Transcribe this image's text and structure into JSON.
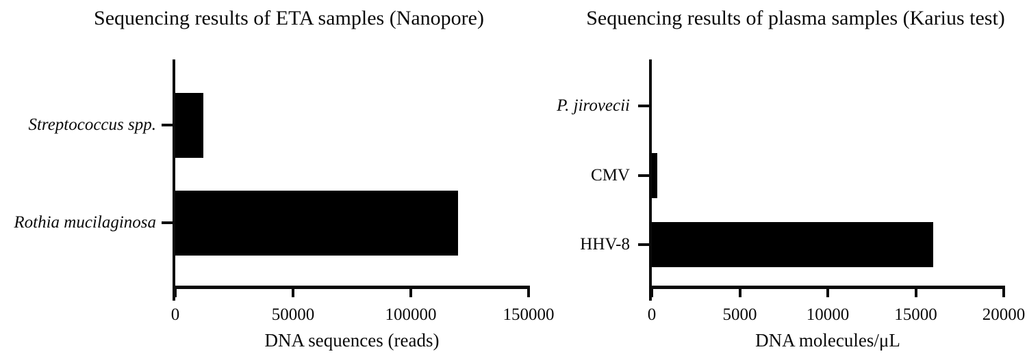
{
  "figure": {
    "background": "#ffffff",
    "ink_color": "#0a0a0a"
  },
  "chart_data": [
    {
      "type": "bar",
      "orientation": "horizontal",
      "title": "Sequencing results of ETA samples (Nanopore)",
      "categories": [
        {
          "label": "Streptococcus spp.",
          "italic": true
        },
        {
          "label": "Rothia mucilaginosa",
          "italic": true
        }
      ],
      "values": [
        12000,
        120000
      ],
      "xlabel": "DNA sequences (reads)",
      "xlim": [
        0,
        150000
      ],
      "xticks": [
        {
          "value": 0,
          "label": "0"
        },
        {
          "value": 50000,
          "label": "50000"
        },
        {
          "value": 100000,
          "label": "100000"
        },
        {
          "value": 150000,
          "label": "150000"
        }
      ],
      "bar_color": "#000000",
      "grid": false,
      "legend": null
    },
    {
      "type": "bar",
      "orientation": "horizontal",
      "title": "Sequencing results of plasma samples (Karius test)",
      "categories": [
        {
          "label": "P. jirovecii",
          "italic": true
        },
        {
          "label": "CMV",
          "italic": false
        },
        {
          "label": "HHV-8",
          "italic": false
        }
      ],
      "values": [
        0,
        300,
        16000
      ],
      "xlabel": "DNA molecules/μL",
      "xlim": [
        0,
        20000
      ],
      "xticks": [
        {
          "value": 0,
          "label": "0"
        },
        {
          "value": 5000,
          "label": "5000"
        },
        {
          "value": 10000,
          "label": "10000"
        },
        {
          "value": 15000,
          "label": "15000"
        },
        {
          "value": 20000,
          "label": "20000"
        }
      ],
      "bar_color": "#000000",
      "grid": false,
      "legend": null
    }
  ]
}
